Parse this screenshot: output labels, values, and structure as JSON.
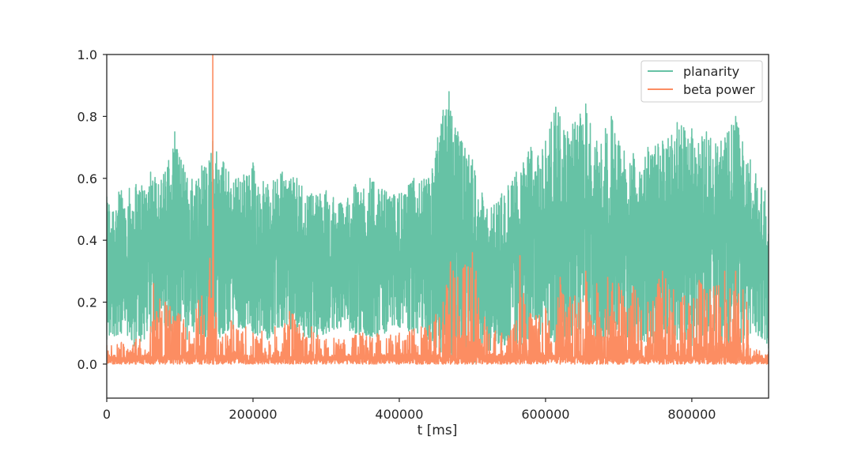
{
  "chart_data": {
    "type": "line",
    "title": "",
    "xlabel": "t [ms]",
    "ylabel": "",
    "xlim": [
      0,
      905000
    ],
    "ylim": [
      -0.11,
      1.0
    ],
    "x_ticks": [
      {
        "value": 0,
        "label": "0"
      },
      {
        "value": 200000,
        "label": "200000"
      },
      {
        "value": 400000,
        "label": "400000"
      },
      {
        "value": 600000,
        "label": "600000"
      },
      {
        "value": 800000,
        "label": "800000"
      }
    ],
    "y_ticks": [
      {
        "value": 0.0,
        "label": "0.0"
      },
      {
        "value": 0.2,
        "label": "0.2"
      },
      {
        "value": 0.4,
        "label": "0.4"
      },
      {
        "value": 0.6,
        "label": "0.6"
      },
      {
        "value": 0.8,
        "label": "0.8"
      },
      {
        "value": 1.0,
        "label": "1.0"
      }
    ],
    "grid": false,
    "legend_position": "top-right",
    "series": [
      {
        "name": "planarity",
        "color": "#66c2a5",
        "envelope": {
          "x": [
            0,
            20000,
            40000,
            60000,
            80000,
            93000,
            110000,
            130000,
            145000,
            160000,
            180000,
            200000,
            220000,
            240000,
            260000,
            280000,
            300000,
            320000,
            340000,
            360000,
            380000,
            400000,
            420000,
            440000,
            460000,
            468000,
            472000,
            480000,
            500000,
            520000,
            540000,
            560000,
            580000,
            600000,
            614000,
            630000,
            655000,
            670000,
            690000,
            700000,
            720000,
            740000,
            760000,
            780000,
            800000,
            820000,
            840000,
            860000,
            880000,
            900000,
            905000
          ],
          "max": [
            0.54,
            0.56,
            0.58,
            0.62,
            0.62,
            0.75,
            0.6,
            0.64,
            0.72,
            0.65,
            0.6,
            0.65,
            0.58,
            0.62,
            0.6,
            0.55,
            0.56,
            0.52,
            0.58,
            0.6,
            0.56,
            0.55,
            0.6,
            0.6,
            0.82,
            0.88,
            0.8,
            0.75,
            0.66,
            0.5,
            0.55,
            0.62,
            0.7,
            0.72,
            0.83,
            0.75,
            0.84,
            0.72,
            0.8,
            0.72,
            0.68,
            0.7,
            0.72,
            0.78,
            0.76,
            0.75,
            0.72,
            0.8,
            0.66,
            0.56,
            0.42
          ],
          "min": [
            0.08,
            0.1,
            0.05,
            0.1,
            0.12,
            0.1,
            0.08,
            0.1,
            0.06,
            0.1,
            0.12,
            0.1,
            0.08,
            0.12,
            0.1,
            0.08,
            0.1,
            0.12,
            0.1,
            0.08,
            0.1,
            0.12,
            0.1,
            0.08,
            0.02,
            0.02,
            0.03,
            0.02,
            0.0,
            0.04,
            0.06,
            0.05,
            0.08,
            0.1,
            0.06,
            0.08,
            0.1,
            0.08,
            0.06,
            0.1,
            0.08,
            0.05,
            0.1,
            0.08,
            0.06,
            0.1,
            0.08,
            0.05,
            0.1,
            0.08,
            0.05
          ]
        }
      },
      {
        "name": "beta power",
        "color": "#fc8d62",
        "envelope": {
          "x": [
            0,
            20000,
            40000,
            60000,
            64000,
            80000,
            100000,
            130000,
            140000,
            145000,
            146000,
            150000,
            170000,
            190000,
            200000,
            230000,
            250000,
            255000,
            280000,
            300000,
            350000,
            400000,
            430000,
            450000,
            460000,
            470000,
            480000,
            490000,
            500000,
            505000,
            520000,
            540000,
            560000,
            565000,
            580000,
            600000,
            620000,
            640000,
            655000,
            670000,
            685000,
            700000,
            720000,
            740000,
            760000,
            775000,
            790000,
            810000,
            830000,
            845000,
            860000,
            870000,
            875000,
            880000,
            905000
          ],
          "max": [
            0.06,
            0.07,
            0.08,
            0.12,
            0.26,
            0.2,
            0.16,
            0.22,
            0.27,
            1.0,
            0.5,
            0.15,
            0.14,
            0.12,
            0.1,
            0.12,
            0.17,
            0.16,
            0.12,
            0.08,
            0.1,
            0.1,
            0.12,
            0.16,
            0.2,
            0.33,
            0.28,
            0.32,
            0.36,
            0.3,
            0.12,
            0.1,
            0.14,
            0.35,
            0.16,
            0.18,
            0.28,
            0.22,
            0.3,
            0.26,
            0.28,
            0.26,
            0.25,
            0.2,
            0.3,
            0.24,
            0.22,
            0.27,
            0.25,
            0.3,
            0.3,
            0.24,
            0.2,
            0.05,
            0.04
          ],
          "min": [
            0.0,
            0.0,
            0.0,
            0.0,
            0.0,
            0.0,
            0.0,
            0.0,
            0.0,
            0.0,
            0.0,
            0.0,
            0.0,
            0.0,
            0.0,
            0.0,
            0.0,
            0.0,
            0.0,
            0.0,
            0.0,
            0.0,
            0.0,
            0.0,
            0.0,
            0.0,
            0.0,
            0.0,
            0.0,
            0.0,
            0.0,
            0.0,
            0.0,
            0.0,
            0.0,
            0.0,
            0.0,
            0.0,
            0.0,
            0.0,
            0.0,
            0.0,
            0.0,
            0.0,
            0.0,
            0.0,
            0.0,
            0.0,
            0.0,
            0.0,
            0.0,
            0.0,
            0.0,
            0.0,
            0.0
          ]
        }
      }
    ]
  }
}
